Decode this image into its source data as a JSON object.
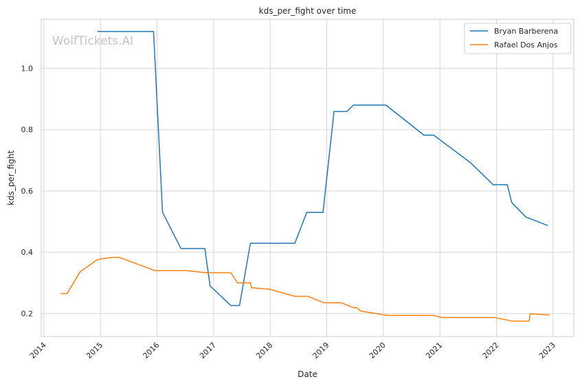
{
  "chart_data": {
    "type": "line",
    "title": "kds_per_fight over time",
    "xlabel": "Date",
    "ylabel": "kds_per_fight",
    "x_ticks": [
      "2014",
      "2015",
      "2016",
      "2017",
      "2018",
      "2019",
      "2020",
      "2021",
      "2022",
      "2023"
    ],
    "y_ticks": [
      "0.2",
      "0.4",
      "0.6",
      "0.8",
      "1.0"
    ],
    "xlim": [
      "2013-12-15",
      "2023-05-15"
    ],
    "ylim": [
      0.125,
      1.16
    ],
    "grid": true,
    "legend_position": "top-right",
    "watermark": "WolfTickets.AI",
    "series": [
      {
        "name": "Bryan Barberena",
        "color": "#1f77b4",
        "points": [
          [
            "2014-12-13",
            1.12
          ],
          [
            "2015-12-10",
            1.12
          ],
          [
            "2016-02-06",
            0.53
          ],
          [
            "2016-06-04",
            0.412
          ],
          [
            "2016-11-05",
            0.412
          ],
          [
            "2016-12-09",
            0.29
          ],
          [
            "2017-04-22",
            0.226
          ],
          [
            "2017-06-17",
            0.226
          ],
          [
            "2017-08-26",
            0.429
          ],
          [
            "2018-06-09",
            0.429
          ],
          [
            "2018-08-25",
            0.53
          ],
          [
            "2018-12-08",
            0.53
          ],
          [
            "2019-02-17",
            0.859
          ],
          [
            "2019-05-11",
            0.859
          ],
          [
            "2019-06-22",
            0.88
          ],
          [
            "2020-01-18",
            0.88
          ],
          [
            "2020-09-19",
            0.782
          ],
          [
            "2020-11-21",
            0.782
          ],
          [
            "2021-07-17",
            0.692
          ],
          [
            "2021-12-11",
            0.62
          ],
          [
            "2022-03-12",
            0.62
          ],
          [
            "2022-04-09",
            0.562
          ],
          [
            "2022-07-09",
            0.515
          ],
          [
            "2022-11-28",
            0.487
          ]
        ]
      },
      {
        "name": "Rafael Dos Anjos",
        "color": "#ff7f0e",
        "points": [
          [
            "2014-04-19",
            0.265
          ],
          [
            "2014-05-31",
            0.265
          ],
          [
            "2014-08-23",
            0.336
          ],
          [
            "2014-12-13",
            0.376
          ],
          [
            "2015-01-17",
            0.379
          ],
          [
            "2015-03-14",
            0.383
          ],
          [
            "2015-05-03",
            0.383
          ],
          [
            "2015-12-19",
            0.34
          ],
          [
            "2016-07-07",
            0.34
          ],
          [
            "2016-11-12",
            0.333
          ],
          [
            "2017-04-22",
            0.333
          ],
          [
            "2017-06-04",
            0.3
          ],
          [
            "2017-08-26",
            0.3
          ],
          [
            "2017-09-02",
            0.284
          ],
          [
            "2017-12-30",
            0.279
          ],
          [
            "2018-06-09",
            0.256
          ],
          [
            "2018-09-01",
            0.256
          ],
          [
            "2018-12-15",
            0.235
          ],
          [
            "2019-04-06",
            0.235
          ],
          [
            "2019-06-22",
            0.219
          ],
          [
            "2019-07-13",
            0.219
          ],
          [
            "2019-08-10",
            0.208
          ],
          [
            "2020-01-25",
            0.194
          ],
          [
            "2020-11-21",
            0.194
          ],
          [
            "2021-01-09",
            0.187
          ],
          [
            "2021-12-18",
            0.187
          ],
          [
            "2022-04-16",
            0.175
          ],
          [
            "2022-07-30",
            0.175
          ],
          [
            "2022-08-06",
            0.199
          ],
          [
            "2022-12-10",
            0.195
          ]
        ]
      }
    ]
  }
}
